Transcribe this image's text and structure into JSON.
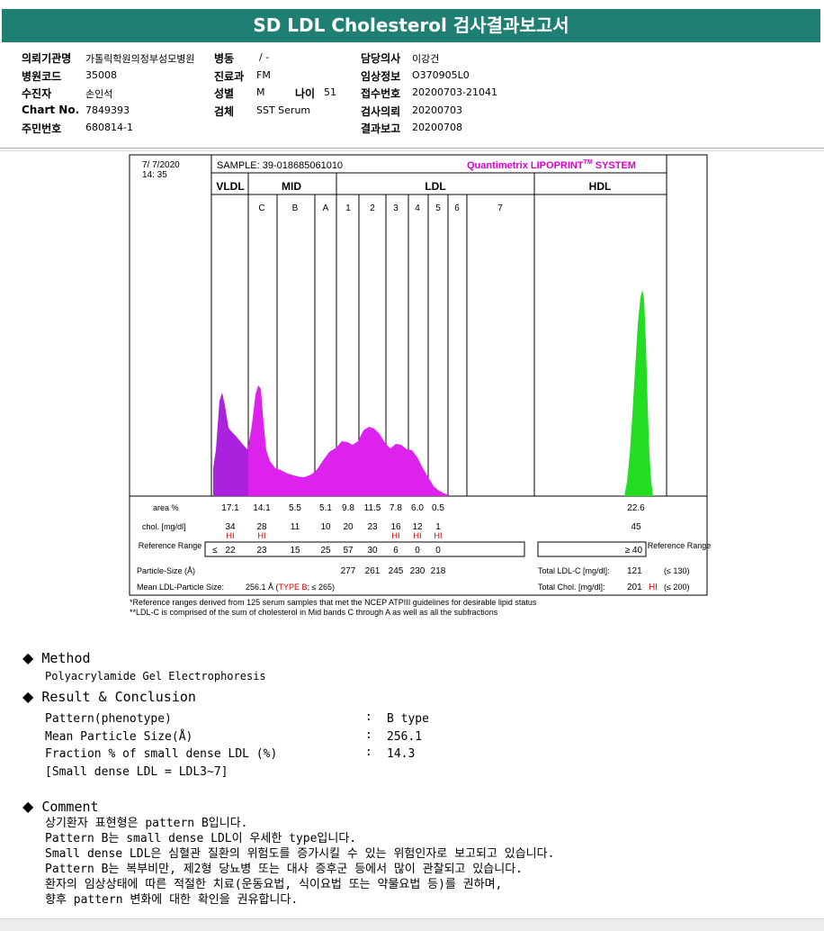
{
  "title": "SD LDL Cholesterol 검사결과보고서",
  "header": {
    "left": [
      {
        "label": "의뢰기관명",
        "value": "가톨릭학원의정부성모병원"
      },
      {
        "label": "병원코드",
        "value": "35008"
      },
      {
        "label": "수진자",
        "value": "손인석"
      },
      {
        "label": "Chart No.",
        "value": "7849393"
      },
      {
        "label": "주민번호",
        "value": "680814-1"
      }
    ],
    "mid": [
      {
        "label": "병동",
        "value": "/ -"
      },
      {
        "label": "진료과",
        "value": "FM"
      },
      {
        "label": "성별",
        "value": "M"
      },
      {
        "label": "검체",
        "value": "SST Serum"
      }
    ],
    "age": {
      "label": "나이",
      "value": "51"
    },
    "right": [
      {
        "label": "담당의사",
        "value": "이강건"
      },
      {
        "label": "임상정보",
        "value": "O370905L0"
      },
      {
        "label": "접수번호",
        "value": "20200703-21041"
      },
      {
        "label": "검사의뢰",
        "value": "20200703"
      },
      {
        "label": "결과보고",
        "value": "20200708"
      }
    ]
  },
  "chart": {
    "date": "7/  7/2020",
    "time": "14: 35",
    "sample": "SAMPLE:   39-018685061010",
    "brand": "Quantimetrix LIPOPRINT",
    "brand_tm": "TM",
    "brand_suffix": " SYSTEM",
    "groups": [
      "VLDL",
      "MID",
      "LDL",
      "HDL"
    ],
    "bands": [
      "C",
      "B",
      "A",
      "1",
      "2",
      "3",
      "4",
      "5",
      "6",
      "7"
    ],
    "area_label": "area %",
    "area_values": [
      "17.1",
      "14.1",
      "5.5",
      "5.1",
      "9.8",
      "11.5",
      "7.8",
      "6.0",
      "0.5"
    ],
    "hdl_area": "22.6",
    "chol_label": "chol. [mg/dl]",
    "chol_values": [
      "34",
      "28",
      "11",
      "10",
      "20",
      "23",
      "16",
      "12",
      "1"
    ],
    "hi_flags": [
      "HI",
      "HI",
      "",
      "",
      "",
      "",
      "HI",
      "HI",
      "HI"
    ],
    "hdl_chol": "45",
    "ref_label": "Reference Range",
    "ref_le": "≤",
    "ref_values": [
      "22",
      "23",
      "15",
      "25",
      "57",
      "30",
      "6",
      "0",
      "0"
    ],
    "hdl_ref": "≥ 40",
    "ref_right_label": "Reference Range",
    "particle_label": "Particle-Size (Å)",
    "particle_values": [
      "277",
      "261",
      "245",
      "230",
      "218"
    ],
    "total_ldl_label": "Total LDL-C [mg/dl]:",
    "total_ldl_value": "121",
    "total_ldl_ref": "(≤ 130)",
    "mean_label": "Mean LDL-Particle Size:",
    "mean_value": "256.1 Å  (",
    "mean_type": "TYPE B",
    "mean_suffix": "; ≤ 265)",
    "total_chol_label": "Total Chol. [mg/dl]:",
    "total_chol_value": "201",
    "total_chol_hi": "HI",
    "total_chol_ref": "(≤ 200)",
    "foot1": "*Reference ranges derived from 125 serum samples that met the NCEP ATPIII guidelines for desirable lipid status",
    "foot2": "**LDL-C is comprised of the sum of cholesterol in Mid bands C through A as well as all the subfractions",
    "colors": {
      "vldl": "#aa22dd",
      "c": "#dd22ee",
      "b": "#2a8fee",
      "a": "#1144cc",
      "l1": "#ffff00",
      "l2": "#ffbb00",
      "l3": "#ff3333",
      "l4": "#dd0055",
      "l5": "#cc0033",
      "hdl": "#22dd22",
      "hi": "#cc0000",
      "brand": "#dd00cc"
    }
  },
  "method": {
    "heading": "Method",
    "text": "Polyacrylamide Gel Electrophoresis"
  },
  "result": {
    "heading": "Result & Conclusion",
    "rows": [
      {
        "label": "Pattern(phenotype)",
        "value": "B type"
      },
      {
        "label": "Mean Particle Size(Å)",
        "value": "256.1"
      },
      {
        "label": "Fraction % of small dense LDL (%)",
        "value": "14.3"
      }
    ],
    "note": "[Small dense LDL = LDL3~7]"
  },
  "comment": {
    "heading": "Comment",
    "lines": [
      "상기환자 표현형은 pattern B입니다.",
      "Pattern B는 small dense LDL이 우세한 type입니다.",
      "Small dense LDL은 심혈관 질환의 위험도를 증가시킬 수 있는 위험인자로 보고되고 있습니다.",
      "Pattern B는 복부비만, 제2형 당뇨병 또는 대사 증후군 등에서 많이 관찰되고 있습니다.",
      "환자의 임상상태에 따른 적절한 치료(운동요법, 식이요법 또는 약물요법 등)를 권하며,",
      "향후 pattern 변화에 대한 확인을 권유합니다."
    ]
  }
}
